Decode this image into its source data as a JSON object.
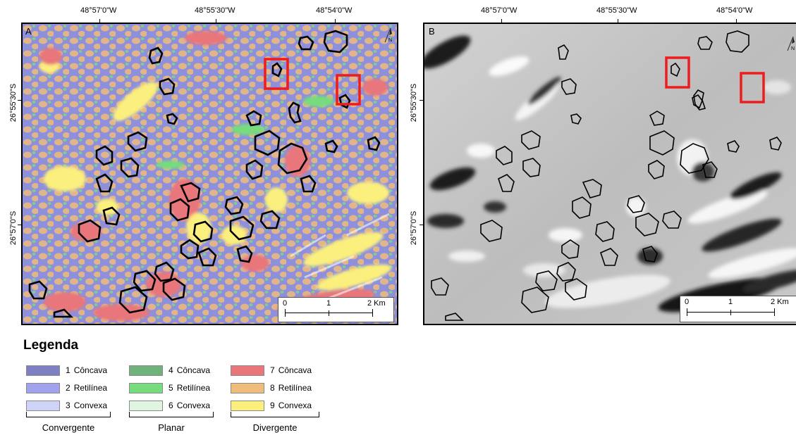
{
  "panels": {
    "a": {
      "letter": "A",
      "top_coords": [
        "48°57'0\"W",
        "48°55'30\"W",
        "48°54'0\"W"
      ],
      "left_coords": [
        "26°55'30\"S",
        "26°57'0\"S"
      ],
      "scale": {
        "labels": [
          "0",
          "1",
          "2 Km"
        ]
      },
      "north_label": "N"
    },
    "b": {
      "letter": "B",
      "top_coords": [
        "48°57'0\"W",
        "48°55'30\"W",
        "48°54'0\"W"
      ],
      "left_coords": [
        "26°55'30\"S",
        "26°57'0\"S"
      ],
      "scale": {
        "labels": [
          "0",
          "1",
          "2 Km"
        ]
      },
      "north_label": "N"
    }
  },
  "legend": {
    "title": "Legenda",
    "items": [
      {
        "num": "1",
        "label": "Côncava",
        "color": "#7f7fc4"
      },
      {
        "num": "2",
        "label": "Retilínea",
        "color": "#a0a2ec"
      },
      {
        "num": "3",
        "label": "Convexa",
        "color": "#cfd3f8"
      },
      {
        "num": "4",
        "label": "Côncava",
        "color": "#6fb27c"
      },
      {
        "num": "5",
        "label": "Retilínea",
        "color": "#77dc7d"
      },
      {
        "num": "6",
        "label": "Convexa",
        "color": "#dff5df"
      },
      {
        "num": "7",
        "label": "Côncava",
        "color": "#e9767a"
      },
      {
        "num": "8",
        "label": "Retilínea",
        "color": "#efbc7c"
      },
      {
        "num": "9",
        "label": "Convexa",
        "color": "#fbef7e"
      }
    ],
    "groups": [
      "Convergente",
      "Planar",
      "Divergente"
    ]
  },
  "colors": {
    "highlight_box": "#ee1c1c",
    "outline": "#000000"
  }
}
